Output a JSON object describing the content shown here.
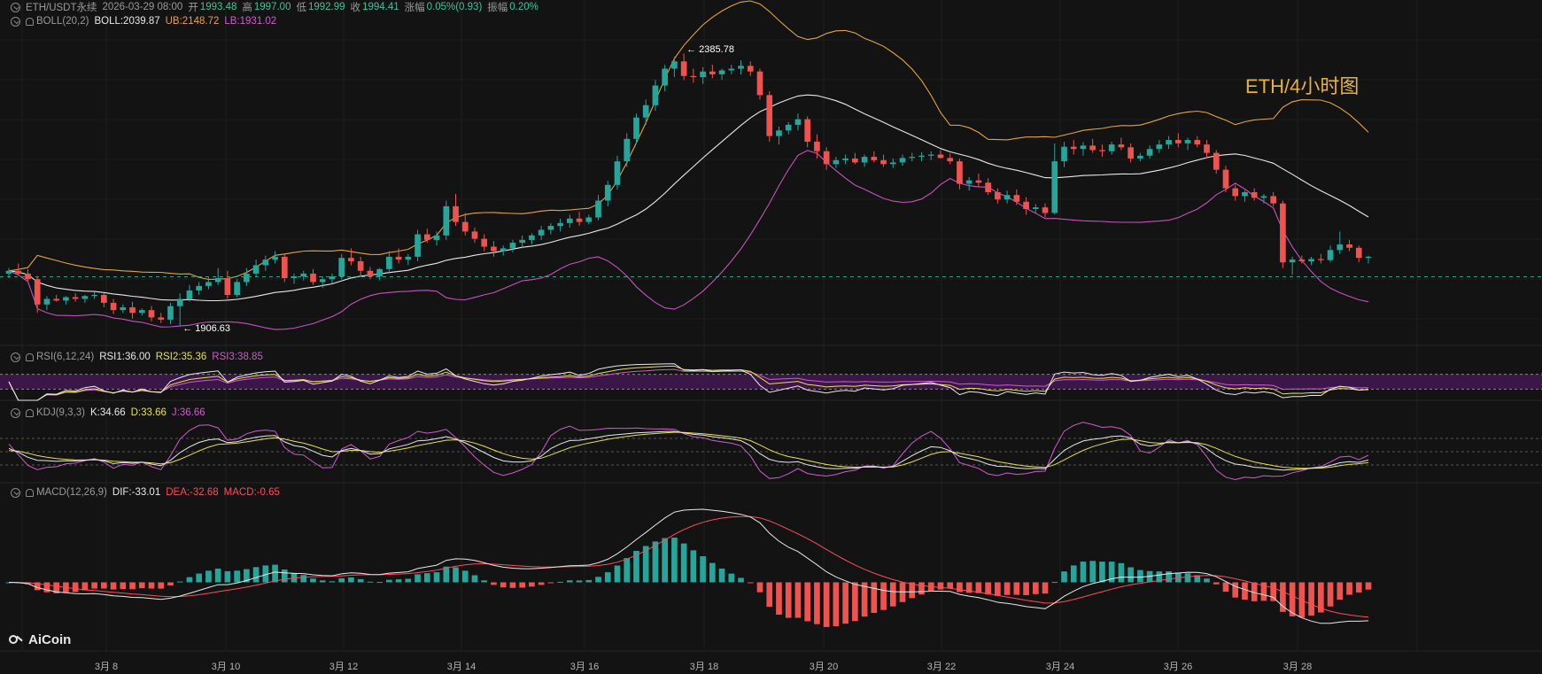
{
  "header": {
    "symbol": "ETH/USDT永续",
    "datetime": "2026-03-29 08:00",
    "open_label": "开",
    "open": "1993.48",
    "high_label": "高",
    "high": "1997.00",
    "low_label": "低",
    "low": "1992.99",
    "close_label": "收",
    "close": "1994.41",
    "change_label": "涨幅",
    "change": "0.05%(0.93)",
    "amplitude_label": "振幅",
    "amplitude": "0.20%"
  },
  "boll": {
    "name": "BOLL(20,2)",
    "mid": "BOLL:2039.87",
    "ub": "UB:2148.72",
    "lb": "LB:1931.02"
  },
  "rsi": {
    "name": "RSI(6,12,24)",
    "r1": "RSI1:36.00",
    "r2": "RSI2:35.36",
    "r3": "RSI3:38.85"
  },
  "kdj": {
    "name": "KDJ(9,3,3)",
    "k": "K:34.66",
    "d": "D:33.66",
    "j": "J:36.66"
  },
  "macd": {
    "name": "MACD(12,26,9)",
    "dif": "DIF:-33.01",
    "dea": "DEA:-32.68",
    "macd": "MACD:-0.65"
  },
  "title_overlay": "ETH/4小时图",
  "logo_text": "AiCoin",
  "annotations": {
    "high": "← 2385.78",
    "low": "← 1906.63"
  },
  "colors": {
    "up": "#26a69a",
    "down": "#ef5350",
    "boll_mid": "#e8e8e8",
    "boll_ub": "#e8a23a",
    "boll_lb": "#c850c0",
    "background": "#131313"
  },
  "icons": [
    "eye-toggle-icon",
    "bell-icon",
    "aicoin-logo-icon"
  ],
  "chart_data": {
    "type": "candlestick",
    "timeframe": "4h",
    "x_ticks": [
      "3月 8",
      "3月 10",
      "3月 12",
      "3月 14",
      "3月 16",
      "3月 18",
      "3月 20",
      "3月 22",
      "3月 24",
      "3月 26",
      "3月 28"
    ],
    "price_range": [
      1880,
      2440
    ],
    "last_price": 1994.41,
    "candles": [
      [
        2000,
        2010,
        1992,
        2005
      ],
      [
        2005,
        2018,
        1998,
        2000
      ],
      [
        2000,
        2008,
        1985,
        1990
      ],
      [
        1990,
        1995,
        1930,
        1945
      ],
      [
        1945,
        1960,
        1935,
        1955
      ],
      [
        1955,
        1962,
        1950,
        1952
      ],
      [
        1952,
        1960,
        1945,
        1958
      ],
      [
        1958,
        1965,
        1950,
        1955
      ],
      [
        1955,
        1962,
        1948,
        1960
      ],
      [
        1960,
        1968,
        1955,
        1962
      ],
      [
        1962,
        1965,
        1940,
        1948
      ],
      [
        1948,
        1955,
        1928,
        1935
      ],
      [
        1935,
        1945,
        1930,
        1940
      ],
      [
        1940,
        1950,
        1920,
        1930
      ],
      [
        1930,
        1938,
        1925,
        1935
      ],
      [
        1935,
        1942,
        1915,
        1922
      ],
      [
        1922,
        1930,
        1912,
        1918
      ],
      [
        1918,
        1948,
        1910,
        1942
      ],
      [
        1942,
        1965,
        1906,
        1955
      ],
      [
        1955,
        1980,
        1950,
        1970
      ],
      [
        1970,
        1985,
        1962,
        1978
      ],
      [
        1978,
        1995,
        1972,
        1985
      ],
      [
        1985,
        2010,
        1980,
        1992
      ],
      [
        1992,
        2005,
        1955,
        1962
      ],
      [
        1962,
        1990,
        1958,
        1985
      ],
      [
        1985,
        2010,
        1978,
        2000
      ],
      [
        2000,
        2025,
        1995,
        2015
      ],
      [
        2015,
        2032,
        2005,
        2025
      ],
      [
        2025,
        2040,
        2018,
        2030
      ],
      [
        2030,
        2035,
        1985,
        1992
      ],
      [
        1992,
        2000,
        1982,
        1995
      ],
      [
        1995,
        2005,
        1988,
        2000
      ],
      [
        2000,
        2008,
        1980,
        1985
      ],
      [
        1985,
        1995,
        1975,
        1990
      ],
      [
        1990,
        2000,
        1982,
        1995
      ],
      [
        1995,
        2035,
        1990,
        2028
      ],
      [
        2028,
        2045,
        2015,
        2022
      ],
      [
        2022,
        2030,
        1995,
        2005
      ],
      [
        2005,
        2012,
        1990,
        1995
      ],
      [
        1995,
        2010,
        1988,
        2008
      ],
      [
        2008,
        2040,
        2000,
        2030
      ],
      [
        2030,
        2045,
        2018,
        2025
      ],
      [
        2025,
        2035,
        2015,
        2030
      ],
      [
        2030,
        2078,
        2022,
        2070
      ],
      [
        2070,
        2080,
        2055,
        2060
      ],
      [
        2060,
        2075,
        2050,
        2068
      ],
      [
        2068,
        2130,
        2060,
        2120
      ],
      [
        2120,
        2142,
        2085,
        2092
      ],
      [
        2092,
        2108,
        2068,
        2075
      ],
      [
        2075,
        2082,
        2055,
        2062
      ],
      [
        2062,
        2070,
        2040,
        2048
      ],
      [
        2048,
        2058,
        2030,
        2040
      ],
      [
        2040,
        2050,
        2032,
        2045
      ],
      [
        2045,
        2060,
        2038,
        2055
      ],
      [
        2055,
        2068,
        2045,
        2060
      ],
      [
        2060,
        2072,
        2052,
        2068
      ],
      [
        2068,
        2085,
        2060,
        2078
      ],
      [
        2078,
        2090,
        2070,
        2085
      ],
      [
        2085,
        2098,
        2075,
        2090
      ],
      [
        2090,
        2105,
        2082,
        2098
      ],
      [
        2098,
        2110,
        2085,
        2092
      ],
      [
        2092,
        2105,
        2088,
        2100
      ],
      [
        2100,
        2140,
        2095,
        2130
      ],
      [
        2130,
        2165,
        2120,
        2158
      ],
      [
        2158,
        2210,
        2150,
        2200
      ],
      [
        2200,
        2250,
        2190,
        2240
      ],
      [
        2240,
        2285,
        2232,
        2278
      ],
      [
        2278,
        2310,
        2265,
        2300
      ],
      [
        2300,
        2345,
        2290,
        2335
      ],
      [
        2335,
        2372,
        2325,
        2365
      ],
      [
        2365,
        2386,
        2350,
        2378
      ],
      [
        2378,
        2392,
        2345,
        2352
      ],
      [
        2352,
        2365,
        2340,
        2350
      ],
      [
        2350,
        2368,
        2338,
        2360
      ],
      [
        2360,
        2372,
        2348,
        2355
      ],
      [
        2355,
        2365,
        2345,
        2362
      ],
      [
        2362,
        2372,
        2355,
        2365
      ],
      [
        2365,
        2380,
        2355,
        2370
      ],
      [
        2370,
        2378,
        2352,
        2360
      ],
      [
        2360,
        2365,
        2310,
        2318
      ],
      [
        2318,
        2325,
        2235,
        2245
      ],
      [
        2245,
        2262,
        2230,
        2255
      ],
      [
        2255,
        2270,
        2248,
        2265
      ],
      [
        2265,
        2285,
        2255,
        2275
      ],
      [
        2275,
        2280,
        2225,
        2235
      ],
      [
        2235,
        2248,
        2205,
        2218
      ],
      [
        2218,
        2225,
        2185,
        2195
      ],
      [
        2195,
        2208,
        2188,
        2202
      ],
      [
        2202,
        2212,
        2195,
        2205
      ],
      [
        2205,
        2215,
        2195,
        2198
      ],
      [
        2198,
        2212,
        2190,
        2208
      ],
      [
        2208,
        2218,
        2198,
        2202
      ],
      [
        2202,
        2212,
        2190,
        2195
      ],
      [
        2195,
        2205,
        2188,
        2198
      ],
      [
        2198,
        2212,
        2192,
        2206
      ],
      [
        2206,
        2215,
        2200,
        2208
      ],
      [
        2208,
        2216,
        2200,
        2210
      ],
      [
        2210,
        2218,
        2202,
        2212
      ],
      [
        2212,
        2220,
        2205,
        2206
      ],
      [
        2206,
        2214,
        2195,
        2200
      ],
      [
        2200,
        2205,
        2150,
        2160
      ],
      [
        2160,
        2172,
        2148,
        2166
      ],
      [
        2166,
        2178,
        2155,
        2162
      ],
      [
        2162,
        2170,
        2140,
        2145
      ],
      [
        2145,
        2152,
        2125,
        2132
      ],
      [
        2132,
        2148,
        2125,
        2140
      ],
      [
        2140,
        2150,
        2122,
        2128
      ],
      [
        2128,
        2136,
        2105,
        2115
      ],
      [
        2115,
        2124,
        2108,
        2118
      ],
      [
        2118,
        2125,
        2100,
        2108
      ],
      [
        2108,
        2232,
        2105,
        2200
      ],
      [
        2200,
        2235,
        2190,
        2226
      ],
      [
        2226,
        2238,
        2212,
        2222
      ],
      [
        2222,
        2234,
        2210,
        2228
      ],
      [
        2228,
        2240,
        2215,
        2220
      ],
      [
        2220,
        2230,
        2208,
        2218
      ],
      [
        2218,
        2235,
        2212,
        2230
      ],
      [
        2230,
        2242,
        2220,
        2225
      ],
      [
        2225,
        2232,
        2198,
        2205
      ],
      [
        2205,
        2215,
        2200,
        2210
      ],
      [
        2210,
        2228,
        2205,
        2222
      ],
      [
        2222,
        2238,
        2215,
        2230
      ],
      [
        2230,
        2245,
        2222,
        2238
      ],
      [
        2238,
        2250,
        2225,
        2232
      ],
      [
        2232,
        2242,
        2220,
        2238
      ],
      [
        2238,
        2245,
        2225,
        2230
      ],
      [
        2230,
        2238,
        2205,
        2215
      ],
      [
        2215,
        2220,
        2178,
        2185
      ],
      [
        2185,
        2192,
        2145,
        2152
      ],
      [
        2152,
        2158,
        2130,
        2138
      ],
      [
        2138,
        2148,
        2128,
        2145
      ],
      [
        2145,
        2152,
        2130,
        2135
      ],
      [
        2135,
        2142,
        2125,
        2138
      ],
      [
        2138,
        2145,
        2120,
        2125
      ],
      [
        2125,
        2130,
        2010,
        2020
      ],
      [
        2020,
        2030,
        1998,
        2025
      ],
      [
        2025,
        2032,
        2018,
        2022
      ],
      [
        2022,
        2030,
        2015,
        2026
      ],
      [
        2026,
        2035,
        2018,
        2024
      ],
      [
        2024,
        2050,
        2020,
        2042
      ],
      [
        2042,
        2075,
        2035,
        2052
      ],
      [
        2052,
        2060,
        2040,
        2046
      ],
      [
        2046,
        2050,
        2020,
        2028
      ],
      [
        2028,
        2032,
        2018,
        2030
      ]
    ],
    "indicators": {
      "boll": {
        "period": 20,
        "mult": 2
      },
      "rsi": {
        "periods": [
          6,
          12,
          24
        ]
      },
      "kdj": {
        "periods": [
          9,
          3,
          3
        ]
      },
      "macd": {
        "fast": 12,
        "slow": 26,
        "signal": 9
      }
    }
  }
}
